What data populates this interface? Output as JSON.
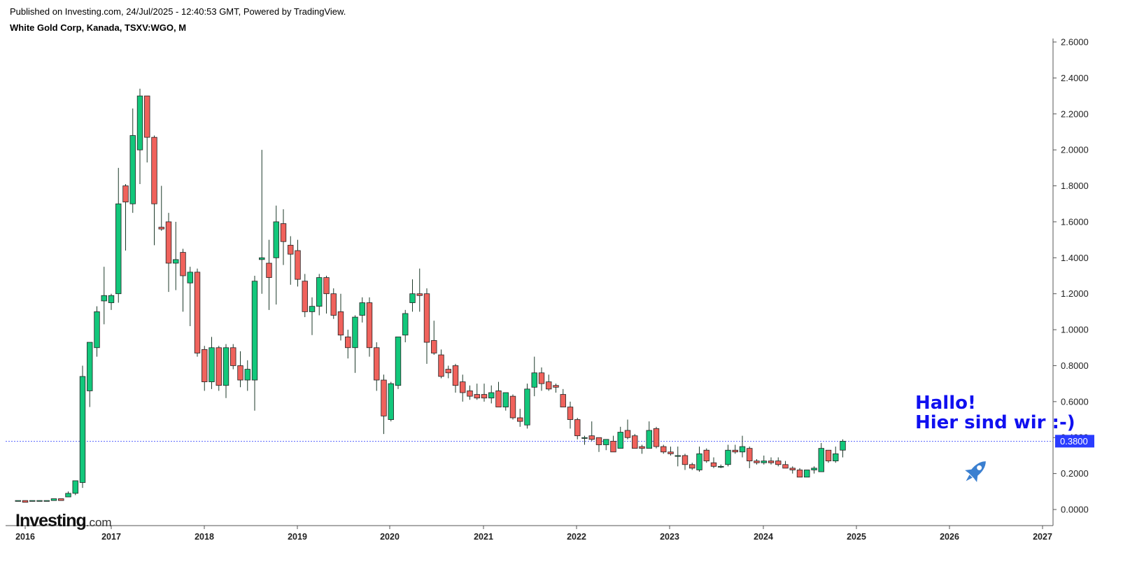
{
  "header": {
    "published": "Published on Investing.com, 24/Jul/2025 - 12:40:53 GMT, Powered by TradingView.",
    "symbol": "White Gold Corp, Kanada, TSXV:WGO, M"
  },
  "annotation": {
    "line1": "Hallo!",
    "line2": "Hier sind wir :-)"
  },
  "logo": {
    "brand": "Investing",
    "suffix": ".com"
  },
  "colors": {
    "up": "#12c77b",
    "down": "#f0625c",
    "price_line": "#2a3cff",
    "label_bg": "#2a3cff",
    "annotation": "#1010f0",
    "rocket": "#3a7fd0"
  },
  "icons": [
    "rocket-icon"
  ],
  "chart_data": {
    "type": "candlestick",
    "interval": "monthly",
    "title": "White Gold Corp, Kanada, TSXV:WGO, M",
    "y_axis": {
      "position": "right",
      "min": 0.0,
      "max": 2.6,
      "ticks": [
        "0.0000",
        "0.2000",
        "0.4000",
        "0.6000",
        "0.8000",
        "1.0000",
        "1.2000",
        "1.4000",
        "1.6000",
        "1.8000",
        "2.0000",
        "2.2000",
        "2.4000",
        "2.6000"
      ]
    },
    "x_axis": {
      "ticks": [
        "2016",
        "2017",
        "2018",
        "2019",
        "2020",
        "2021",
        "2022",
        "2023",
        "2024",
        "2025",
        "2026",
        "2027"
      ]
    },
    "last_price": 0.38,
    "last_price_label": "0.3800",
    "start": "2015-12",
    "candles": [
      {
        "o": 0.05,
        "h": 0.05,
        "l": 0.05,
        "c": 0.05
      },
      {
        "o": 0.05,
        "h": 0.05,
        "l": 0.04,
        "c": 0.04
      },
      {
        "o": 0.05,
        "h": 0.05,
        "l": 0.05,
        "c": 0.05
      },
      {
        "o": 0.05,
        "h": 0.05,
        "l": 0.05,
        "c": 0.05
      },
      {
        "o": 0.05,
        "h": 0.05,
        "l": 0.05,
        "c": 0.05
      },
      {
        "o": 0.05,
        "h": 0.06,
        "l": 0.05,
        "c": 0.06
      },
      {
        "o": 0.06,
        "h": 0.06,
        "l": 0.05,
        "c": 0.05
      },
      {
        "o": 0.07,
        "h": 0.1,
        "l": 0.07,
        "c": 0.09
      },
      {
        "o": 0.09,
        "h": 0.16,
        "l": 0.08,
        "c": 0.16
      },
      {
        "o": 0.15,
        "h": 0.8,
        "l": 0.12,
        "c": 0.74
      },
      {
        "o": 0.66,
        "h": 0.93,
        "l": 0.57,
        "c": 0.93
      },
      {
        "o": 0.9,
        "h": 1.13,
        "l": 0.85,
        "c": 1.1
      },
      {
        "o": 1.16,
        "h": 1.35,
        "l": 1.03,
        "c": 1.19
      },
      {
        "o": 1.15,
        "h": 1.2,
        "l": 1.11,
        "c": 1.19
      },
      {
        "o": 1.2,
        "h": 1.9,
        "l": 1.15,
        "c": 1.7
      },
      {
        "o": 1.8,
        "h": 1.81,
        "l": 1.44,
        "c": 1.71
      },
      {
        "o": 1.7,
        "h": 2.23,
        "l": 1.65,
        "c": 2.08
      },
      {
        "o": 2.0,
        "h": 2.34,
        "l": 1.81,
        "c": 2.3
      },
      {
        "o": 2.3,
        "h": 2.3,
        "l": 1.93,
        "c": 2.07
      },
      {
        "o": 2.07,
        "h": 2.08,
        "l": 1.47,
        "c": 1.7
      },
      {
        "o": 1.57,
        "h": 1.8,
        "l": 1.55,
        "c": 1.56
      },
      {
        "o": 1.6,
        "h": 1.65,
        "l": 1.21,
        "c": 1.37
      },
      {
        "o": 1.37,
        "h": 1.6,
        "l": 1.22,
        "c": 1.39
      },
      {
        "o": 1.43,
        "h": 1.45,
        "l": 1.1,
        "c": 1.3
      },
      {
        "o": 1.26,
        "h": 1.35,
        "l": 1.02,
        "c": 1.32
      },
      {
        "o": 1.32,
        "h": 1.34,
        "l": 0.85,
        "c": 0.87
      },
      {
        "o": 0.89,
        "h": 0.91,
        "l": 0.66,
        "c": 0.71
      },
      {
        "o": 0.71,
        "h": 0.96,
        "l": 0.67,
        "c": 0.9
      },
      {
        "o": 0.9,
        "h": 0.91,
        "l": 0.66,
        "c": 0.69
      },
      {
        "o": 0.69,
        "h": 0.92,
        "l": 0.62,
        "c": 0.9
      },
      {
        "o": 0.9,
        "h": 0.92,
        "l": 0.78,
        "c": 0.8
      },
      {
        "o": 0.8,
        "h": 0.88,
        "l": 0.68,
        "c": 0.72
      },
      {
        "o": 0.72,
        "h": 0.83,
        "l": 0.66,
        "c": 0.78
      },
      {
        "o": 0.72,
        "h": 1.3,
        "l": 0.55,
        "c": 1.27
      },
      {
        "o": 1.39,
        "h": 2.0,
        "l": 1.2,
        "c": 1.4
      },
      {
        "o": 1.37,
        "h": 1.5,
        "l": 1.11,
        "c": 1.29
      },
      {
        "o": 1.4,
        "h": 1.69,
        "l": 1.14,
        "c": 1.6
      },
      {
        "o": 1.59,
        "h": 1.67,
        "l": 1.36,
        "c": 1.49
      },
      {
        "o": 1.47,
        "h": 1.52,
        "l": 1.25,
        "c": 1.42
      },
      {
        "o": 1.44,
        "h": 1.5,
        "l": 1.24,
        "c": 1.28
      },
      {
        "o": 1.27,
        "h": 1.31,
        "l": 1.07,
        "c": 1.1
      },
      {
        "o": 1.1,
        "h": 1.18,
        "l": 0.97,
        "c": 1.13
      },
      {
        "o": 1.13,
        "h": 1.31,
        "l": 1.08,
        "c": 1.29
      },
      {
        "o": 1.29,
        "h": 1.3,
        "l": 1.09,
        "c": 1.2
      },
      {
        "o": 1.2,
        "h": 1.23,
        "l": 1.06,
        "c": 1.08
      },
      {
        "o": 1.1,
        "h": 1.2,
        "l": 0.94,
        "c": 0.97
      },
      {
        "o": 0.96,
        "h": 1.0,
        "l": 0.84,
        "c": 0.9
      },
      {
        "o": 0.9,
        "h": 1.08,
        "l": 0.76,
        "c": 1.07
      },
      {
        "o": 1.08,
        "h": 1.18,
        "l": 1.04,
        "c": 1.15
      },
      {
        "o": 1.15,
        "h": 1.18,
        "l": 0.85,
        "c": 0.9
      },
      {
        "o": 0.9,
        "h": 0.93,
        "l": 0.66,
        "c": 0.72
      },
      {
        "o": 0.72,
        "h": 0.75,
        "l": 0.42,
        "c": 0.52
      },
      {
        "o": 0.5,
        "h": 0.71,
        "l": 0.49,
        "c": 0.7
      },
      {
        "o": 0.69,
        "h": 0.96,
        "l": 0.67,
        "c": 0.96
      },
      {
        "o": 0.97,
        "h": 1.11,
        "l": 0.93,
        "c": 1.09
      },
      {
        "o": 1.15,
        "h": 1.28,
        "l": 1.1,
        "c": 1.2
      },
      {
        "o": 1.2,
        "h": 1.34,
        "l": 1.1,
        "c": 1.19
      },
      {
        "o": 1.2,
        "h": 1.23,
        "l": 0.81,
        "c": 0.93
      },
      {
        "o": 0.94,
        "h": 1.05,
        "l": 0.86,
        "c": 0.87
      },
      {
        "o": 0.86,
        "h": 0.89,
        "l": 0.73,
        "c": 0.74
      },
      {
        "o": 0.78,
        "h": 0.8,
        "l": 0.73,
        "c": 0.76
      },
      {
        "o": 0.8,
        "h": 0.81,
        "l": 0.65,
        "c": 0.69
      },
      {
        "o": 0.71,
        "h": 0.75,
        "l": 0.6,
        "c": 0.65
      },
      {
        "o": 0.66,
        "h": 0.69,
        "l": 0.61,
        "c": 0.63
      },
      {
        "o": 0.64,
        "h": 0.7,
        "l": 0.61,
        "c": 0.62
      },
      {
        "o": 0.64,
        "h": 0.7,
        "l": 0.6,
        "c": 0.62
      },
      {
        "o": 0.62,
        "h": 0.69,
        "l": 0.59,
        "c": 0.65
      },
      {
        "o": 0.66,
        "h": 0.71,
        "l": 0.57,
        "c": 0.57
      },
      {
        "o": 0.57,
        "h": 0.65,
        "l": 0.55,
        "c": 0.65
      },
      {
        "o": 0.63,
        "h": 0.64,
        "l": 0.5,
        "c": 0.51
      },
      {
        "o": 0.51,
        "h": 0.56,
        "l": 0.46,
        "c": 0.49
      },
      {
        "o": 0.47,
        "h": 0.7,
        "l": 0.45,
        "c": 0.67
      },
      {
        "o": 0.68,
        "h": 0.85,
        "l": 0.63,
        "c": 0.76
      },
      {
        "o": 0.76,
        "h": 0.79,
        "l": 0.66,
        "c": 0.7
      },
      {
        "o": 0.71,
        "h": 0.75,
        "l": 0.66,
        "c": 0.67
      },
      {
        "o": 0.69,
        "h": 0.7,
        "l": 0.65,
        "c": 0.68
      },
      {
        "o": 0.64,
        "h": 0.67,
        "l": 0.57,
        "c": 0.57
      },
      {
        "o": 0.57,
        "h": 0.6,
        "l": 0.45,
        "c": 0.5
      },
      {
        "o": 0.5,
        "h": 0.51,
        "l": 0.39,
        "c": 0.41
      },
      {
        "o": 0.4,
        "h": 0.41,
        "l": 0.36,
        "c": 0.4
      },
      {
        "o": 0.41,
        "h": 0.49,
        "l": 0.38,
        "c": 0.39
      },
      {
        "o": 0.4,
        "h": 0.4,
        "l": 0.32,
        "c": 0.36
      },
      {
        "o": 0.36,
        "h": 0.39,
        "l": 0.33,
        "c": 0.39
      },
      {
        "o": 0.38,
        "h": 0.41,
        "l": 0.32,
        "c": 0.32
      },
      {
        "o": 0.34,
        "h": 0.46,
        "l": 0.34,
        "c": 0.43
      },
      {
        "o": 0.44,
        "h": 0.5,
        "l": 0.39,
        "c": 0.4
      },
      {
        "o": 0.41,
        "h": 0.42,
        "l": 0.34,
        "c": 0.34
      },
      {
        "o": 0.35,
        "h": 0.36,
        "l": 0.31,
        "c": 0.34
      },
      {
        "o": 0.34,
        "h": 0.49,
        "l": 0.34,
        "c": 0.44
      },
      {
        "o": 0.45,
        "h": 0.46,
        "l": 0.34,
        "c": 0.35
      },
      {
        "o": 0.35,
        "h": 0.36,
        "l": 0.31,
        "c": 0.32
      },
      {
        "o": 0.32,
        "h": 0.35,
        "l": 0.3,
        "c": 0.31
      },
      {
        "o": 0.3,
        "h": 0.35,
        "l": 0.24,
        "c": 0.3
      },
      {
        "o": 0.3,
        "h": 0.31,
        "l": 0.22,
        "c": 0.25
      },
      {
        "o": 0.25,
        "h": 0.26,
        "l": 0.22,
        "c": 0.23
      },
      {
        "o": 0.22,
        "h": 0.35,
        "l": 0.21,
        "c": 0.31
      },
      {
        "o": 0.33,
        "h": 0.34,
        "l": 0.26,
        "c": 0.27
      },
      {
        "o": 0.26,
        "h": 0.29,
        "l": 0.23,
        "c": 0.24
      },
      {
        "o": 0.24,
        "h": 0.25,
        "l": 0.23,
        "c": 0.24
      },
      {
        "o": 0.25,
        "h": 0.36,
        "l": 0.24,
        "c": 0.33
      },
      {
        "o": 0.33,
        "h": 0.36,
        "l": 0.31,
        "c": 0.32
      },
      {
        "o": 0.32,
        "h": 0.41,
        "l": 0.29,
        "c": 0.35
      },
      {
        "o": 0.34,
        "h": 0.35,
        "l": 0.23,
        "c": 0.27
      },
      {
        "o": 0.27,
        "h": 0.28,
        "l": 0.25,
        "c": 0.26
      },
      {
        "o": 0.26,
        "h": 0.3,
        "l": 0.25,
        "c": 0.27
      },
      {
        "o": 0.27,
        "h": 0.29,
        "l": 0.25,
        "c": 0.26
      },
      {
        "o": 0.27,
        "h": 0.29,
        "l": 0.24,
        "c": 0.25
      },
      {
        "o": 0.25,
        "h": 0.27,
        "l": 0.23,
        "c": 0.23
      },
      {
        "o": 0.23,
        "h": 0.24,
        "l": 0.2,
        "c": 0.22
      },
      {
        "o": 0.22,
        "h": 0.23,
        "l": 0.18,
        "c": 0.18
      },
      {
        "o": 0.18,
        "h": 0.22,
        "l": 0.18,
        "c": 0.22
      },
      {
        "o": 0.22,
        "h": 0.24,
        "l": 0.2,
        "c": 0.23
      },
      {
        "o": 0.21,
        "h": 0.37,
        "l": 0.21,
        "c": 0.34
      },
      {
        "o": 0.33,
        "h": 0.33,
        "l": 0.26,
        "c": 0.27
      },
      {
        "o": 0.27,
        "h": 0.35,
        "l": 0.26,
        "c": 0.31
      },
      {
        "o": 0.33,
        "h": 0.39,
        "l": 0.29,
        "c": 0.38
      }
    ]
  }
}
